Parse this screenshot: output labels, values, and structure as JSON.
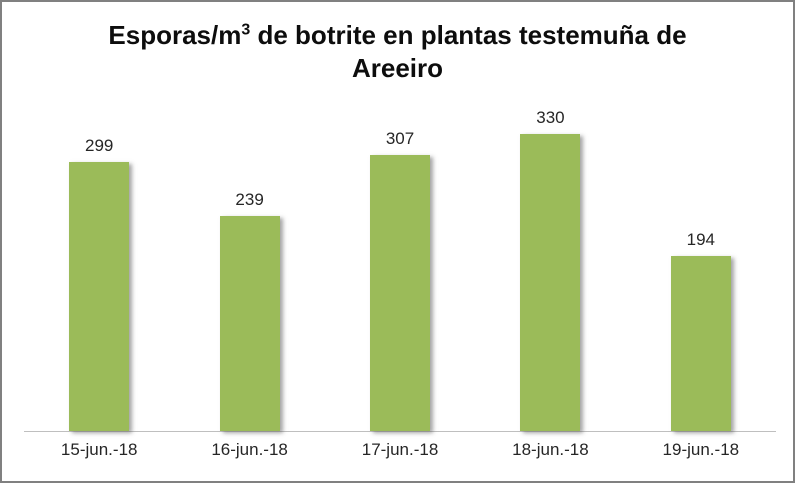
{
  "title": {
    "prefix": "Esporas/m",
    "superscript": "3",
    "suffix": " de botrite en plantas testemuña de",
    "line2": "Areeiro"
  },
  "chart_data": {
    "type": "bar",
    "title": "Esporas/m³ de botrite en plantas testemuña de Areeiro",
    "categories": [
      "15-jun.-18",
      "16-jun.-18",
      "17-jun.-18",
      "18-jun.-18",
      "19-jun.-18"
    ],
    "values": [
      299,
      239,
      307,
      330,
      194
    ],
    "xlabel": "",
    "ylabel": "",
    "ylim": [
      0,
      350
    ],
    "grid": false,
    "legend": false,
    "data_labels": true,
    "colors": {
      "bar": "#9BBB59",
      "frame_border": "#808080",
      "axis_line": "#BFBFBF",
      "text_labels": "#262626",
      "title_text": "#0d0d0d",
      "background": "#FFFFFF"
    }
  }
}
